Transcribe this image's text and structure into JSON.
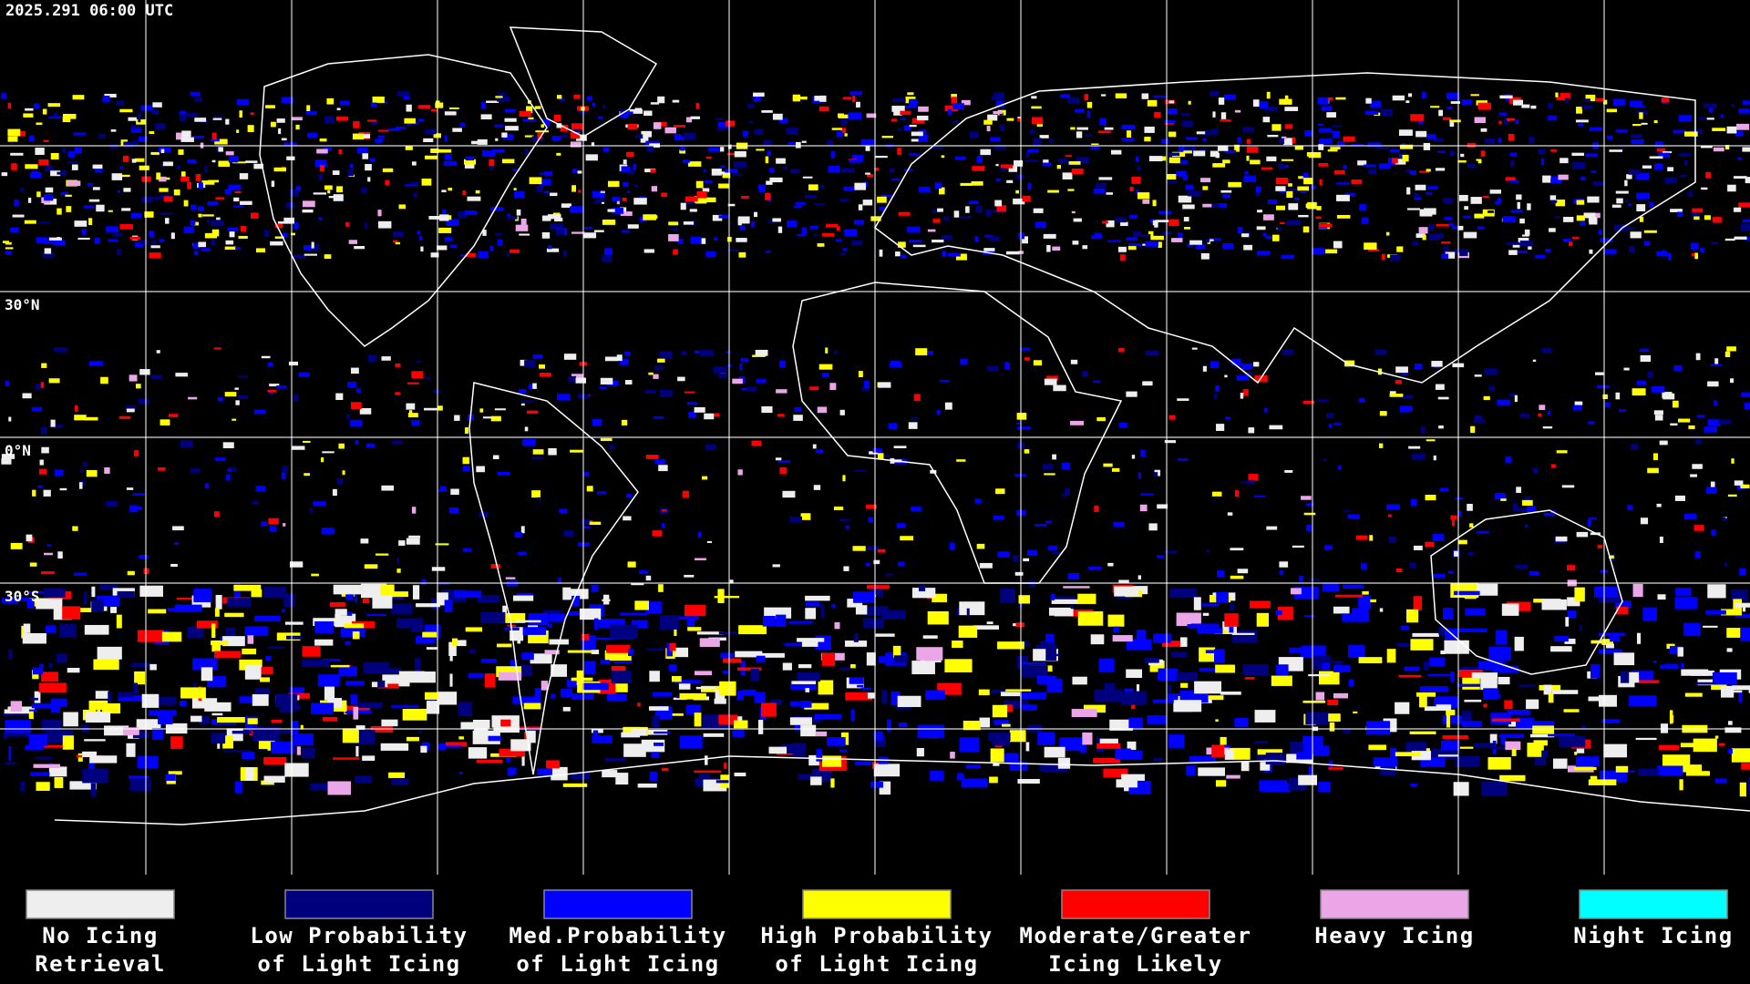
{
  "header": {
    "timestamp": "2025.291 06:00 UTC"
  },
  "map": {
    "latitude_labels": [
      "30°N",
      "0°N",
      "30°S"
    ]
  },
  "legend": {
    "items": [
      {
        "color": "#eeeeee",
        "lines": [
          "No Icing",
          "Retrieval"
        ]
      },
      {
        "color": "#00007f",
        "lines": [
          "Low Probability",
          "of Light Icing"
        ]
      },
      {
        "color": "#0000ff",
        "lines": [
          "Med.Probability",
          "of Light Icing"
        ]
      },
      {
        "color": "#ffff00",
        "lines": [
          "High Probability",
          "of Light Icing"
        ]
      },
      {
        "color": "#ff0000",
        "lines": [
          "Moderate/Greater",
          "Icing Likely"
        ]
      },
      {
        "color": "#eaa6e6",
        "lines": [
          "Heavy Icing"
        ]
      },
      {
        "color": "#00ffff",
        "lines": [
          "Night Icing"
        ]
      }
    ]
  }
}
